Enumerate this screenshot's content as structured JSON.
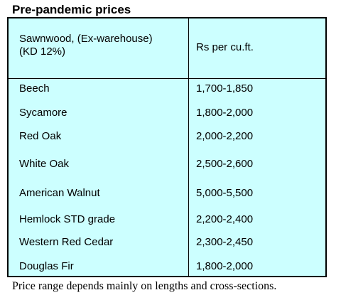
{
  "title": "Pre-pandemic prices",
  "table": {
    "header": {
      "col1_line1": "Sawnwood, (Ex-warehouse)",
      "col1_line2": "(KD 12%)",
      "col2": "Rs per cu.ft."
    },
    "rows": [
      {
        "species": "Beech",
        "price": "1,700-1,850"
      },
      {
        "species": "Sycamore",
        "price": "1,800-2,000"
      },
      {
        "species": "Red Oak",
        "price": "2,000-2,200"
      },
      {
        "species": "White Oak",
        "price": "2,500-2,600"
      },
      {
        "species": "American Walnut",
        "price": "5,000-5,500"
      },
      {
        "species": "Hemlock STD grade",
        "price": "2,200-2,400"
      },
      {
        "species": "Western Red Cedar",
        "price": "2,300-2,450"
      },
      {
        "species": "Douglas Fir",
        "price": "1,800-2,000"
      }
    ]
  },
  "footnote": "Price range depends mainly on lengths and cross-sections.",
  "colors": {
    "table_background": "#ccffff",
    "border": "#000000",
    "text": "#000000"
  }
}
